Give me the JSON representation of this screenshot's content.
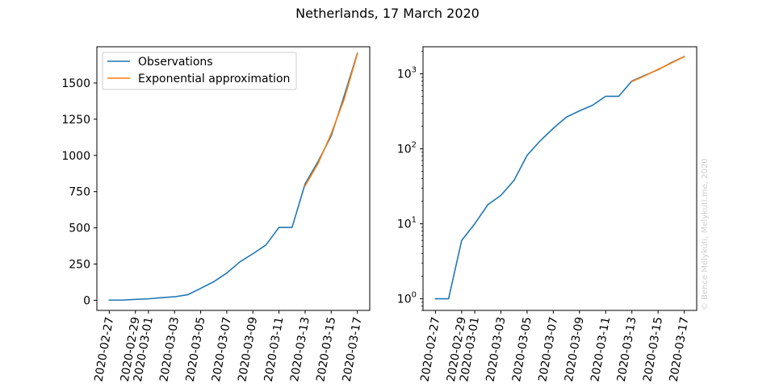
{
  "figure": {
    "title": "Netherlands, 17 March 2020",
    "watermark": "© Bence Mélykúti, Melykuti.me, 2020"
  },
  "chart_data": [
    {
      "type": "line",
      "yscale": "linear",
      "ylim": [
        -70,
        1750
      ],
      "yticks": [
        0,
        250,
        500,
        750,
        1000,
        1250,
        1500
      ],
      "xticks": [
        "2020-02-27",
        "2020-02-29",
        "2020-03-01",
        "2020-03-03",
        "2020-03-05",
        "2020-03-07",
        "2020-03-09",
        "2020-03-11",
        "2020-03-13",
        "2020-03-15",
        "2020-03-17"
      ],
      "x": [
        "2020-02-27",
        "2020-02-28",
        "2020-02-29",
        "2020-03-01",
        "2020-03-02",
        "2020-03-03",
        "2020-03-04",
        "2020-03-05",
        "2020-03-06",
        "2020-03-07",
        "2020-03-08",
        "2020-03-09",
        "2020-03-10",
        "2020-03-11",
        "2020-03-12",
        "2020-03-13",
        "2020-03-14",
        "2020-03-15",
        "2020-03-16",
        "2020-03-17"
      ],
      "legend": {
        "loc": "upper-left"
      },
      "series": [
        {
          "name": "Observations",
          "color": "#1f77b4",
          "x": [
            "2020-02-27",
            "2020-02-28",
            "2020-02-29",
            "2020-03-01",
            "2020-03-02",
            "2020-03-03",
            "2020-03-04",
            "2020-03-05",
            "2020-03-06",
            "2020-03-07",
            "2020-03-08",
            "2020-03-09",
            "2020-03-10",
            "2020-03-11",
            "2020-03-12",
            "2020-03-13",
            "2020-03-14",
            "2020-03-15",
            "2020-03-16",
            "2020-03-17"
          ],
          "values": [
            1,
            1,
            6,
            10,
            18,
            24,
            38,
            82,
            128,
            188,
            265,
            321,
            382,
            503,
            503,
            804,
            959,
            1135,
            1413,
            1705
          ]
        },
        {
          "name": "Exponential approximation",
          "color": "#ff7f0e",
          "x": [
            "2020-03-13",
            "2020-03-14",
            "2020-03-15",
            "2020-03-16",
            "2020-03-17"
          ],
          "values": [
            790,
            945,
            1150,
            1390,
            1700
          ]
        }
      ]
    },
    {
      "type": "line",
      "yscale": "log",
      "ylim": [
        0.7,
        2300
      ],
      "yticks": [
        {
          "value": 1,
          "base": "10",
          "exp": "0"
        },
        {
          "value": 10,
          "base": "10",
          "exp": "1"
        },
        {
          "value": 100,
          "base": "10",
          "exp": "2"
        },
        {
          "value": 1000,
          "base": "10",
          "exp": "3"
        }
      ],
      "xticks": [
        "2020-02-27",
        "2020-02-29",
        "2020-03-01",
        "2020-03-03",
        "2020-03-05",
        "2020-03-07",
        "2020-03-09",
        "2020-03-11",
        "2020-03-13",
        "2020-03-15",
        "2020-03-17"
      ],
      "series": [
        {
          "name": "Observations",
          "color": "#1f77b4",
          "x": [
            "2020-02-27",
            "2020-02-28",
            "2020-02-29",
            "2020-03-01",
            "2020-03-02",
            "2020-03-03",
            "2020-03-04",
            "2020-03-05",
            "2020-03-06",
            "2020-03-07",
            "2020-03-08",
            "2020-03-09",
            "2020-03-10",
            "2020-03-11",
            "2020-03-12",
            "2020-03-13",
            "2020-03-14",
            "2020-03-15",
            "2020-03-16",
            "2020-03-17"
          ],
          "values": [
            1,
            1,
            6,
            10,
            18,
            24,
            38,
            82,
            128,
            188,
            265,
            321,
            382,
            503,
            503,
            804,
            959,
            1135,
            1413,
            1705
          ]
        },
        {
          "name": "Exponential approximation",
          "color": "#ff7f0e",
          "x": [
            "2020-03-13",
            "2020-03-14",
            "2020-03-15",
            "2020-03-16",
            "2020-03-17"
          ],
          "values": [
            790,
            945,
            1150,
            1390,
            1700
          ]
        }
      ]
    }
  ]
}
